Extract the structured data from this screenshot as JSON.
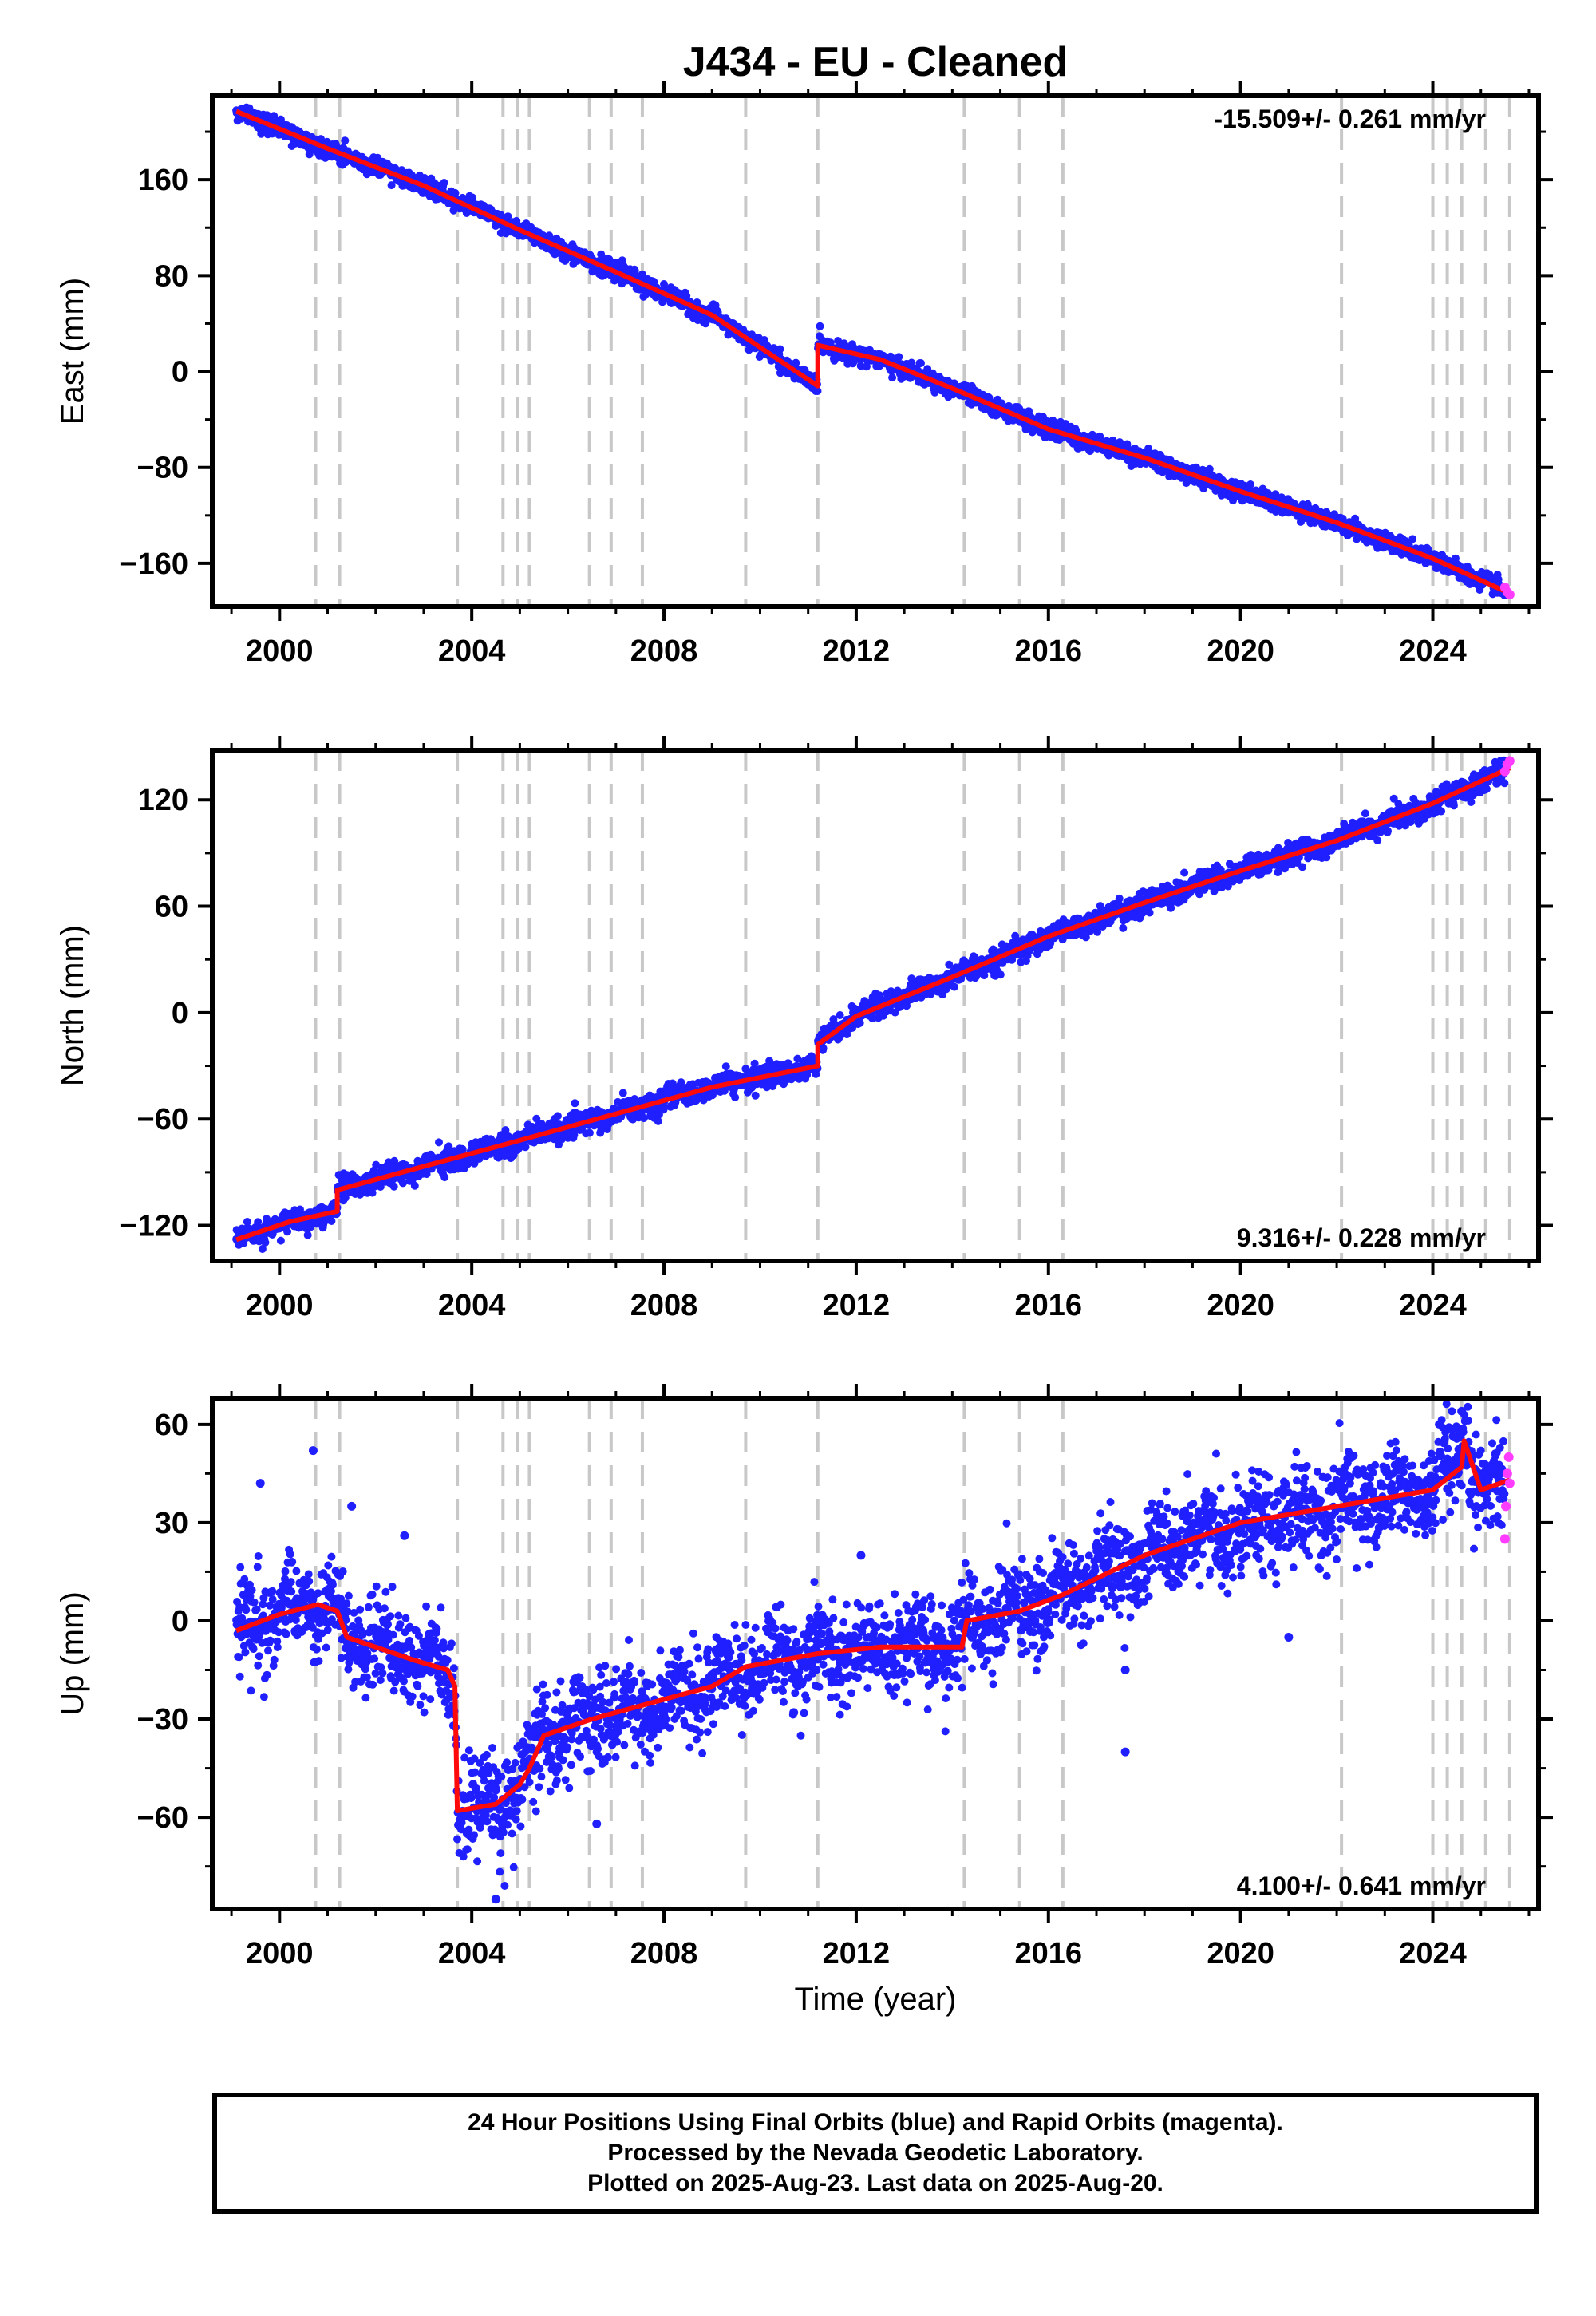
{
  "title": "J434  - EU - Cleaned",
  "colors": {
    "final": "#1f1fff",
    "rapid": "#ff3cff",
    "model": "#ff0a0a",
    "break": "#c8c8c8"
  },
  "chart_data": [
    {
      "type": "scatter",
      "name": "east",
      "ylabel": "East (mm)",
      "xlabel": "",
      "xlim": [
        1998.6,
        2026.2
      ],
      "ylim": [
        -196,
        230
      ],
      "yticks": [
        160,
        80,
        0,
        -80,
        -160
      ],
      "ytick_labels": [
        "160",
        "80",
        "0",
        "−80",
        "−160"
      ],
      "xticks": [
        2000,
        2004,
        2008,
        2012,
        2016,
        2020,
        2024
      ],
      "xtick_labels": [
        "2000",
        "2004",
        "2008",
        "2012",
        "2016",
        "2020",
        "2024"
      ],
      "rate_label": "-15.509+/- 0.261 mm/yr",
      "rate_position": "top-right",
      "model_line": {
        "x": [
          1999.1,
          2001.0,
          2003.0,
          2005.0,
          2007.0,
          2009.0,
          2011.2,
          2011.2,
          2012.5,
          2014.0,
          2016.0,
          2018.0,
          2020.0,
          2022.0,
          2024.0,
          2025.6
        ],
        "y": [
          217,
          186,
          155,
          118,
          83,
          47,
          -12,
          22,
          10,
          -14,
          -48,
          -72,
          -100,
          -126,
          -156,
          -185
        ]
      },
      "point_noise": 3.5,
      "outliers": [],
      "rapid_points": {
        "x": [
          2025.5,
          2025.55,
          2025.6
        ],
        "y": [
          -180,
          -184,
          -186
        ]
      },
      "grid": false
    },
    {
      "type": "scatter",
      "name": "north",
      "ylabel": "North (mm)",
      "xlabel": "",
      "xlim": [
        1998.6,
        2026.2
      ],
      "ylim": [
        -140,
        148
      ],
      "yticks": [
        120,
        60,
        0,
        -60,
        -120
      ],
      "ytick_labels": [
        "120",
        "60",
        "0",
        "−60",
        "−120"
      ],
      "xticks": [
        2000,
        2004,
        2008,
        2012,
        2016,
        2020,
        2024
      ],
      "xtick_labels": [
        "2000",
        "2004",
        "2008",
        "2012",
        "2016",
        "2020",
        "2024"
      ],
      "rate_label": "9.316+/- 0.228 mm/yr",
      "rate_position": "bottom-right",
      "model_line": {
        "x": [
          1999.1,
          2000.2,
          2001.2,
          2001.2,
          2003.5,
          2005.0,
          2007.0,
          2009.0,
          2011.2,
          2011.2,
          2012.0,
          2014.0,
          2016.0,
          2018.0,
          2020.0,
          2022.0,
          2024.0,
          2025.6
        ],
        "y": [
          -128,
          -118,
          -112,
          -100,
          -83,
          -72,
          -57,
          -42,
          -30,
          -18,
          -2,
          20,
          43,
          62,
          80,
          97,
          118,
          138
        ]
      },
      "point_noise": 3.0,
      "outliers": [],
      "rapid_points": {
        "x": [
          2025.5,
          2025.55,
          2025.6
        ],
        "y": [
          136,
          140,
          142
        ]
      },
      "grid": false
    },
    {
      "type": "scatter",
      "name": "up",
      "ylabel": "Up (mm)",
      "xlabel": "Time (year)",
      "xlim": [
        1998.6,
        2026.2
      ],
      "ylim": [
        -88,
        68
      ],
      "yticks": [
        60,
        30,
        0,
        -30,
        -60
      ],
      "ytick_labels": [
        "60",
        "30",
        "0",
        "−30",
        "−60"
      ],
      "xticks": [
        2000,
        2004,
        2008,
        2012,
        2016,
        2020,
        2024
      ],
      "xtick_labels": [
        "2000",
        "2004",
        "2008",
        "2012",
        "2016",
        "2020",
        "2024"
      ],
      "rate_label": "4.100+/- 0.641 mm/yr",
      "rate_position": "bottom-right",
      "model_line": {
        "x": [
          1999.1,
          2000.0,
          2000.8,
          2001.2,
          2001.4,
          2002.0,
          2002.8,
          2003.5,
          2003.65,
          2003.7,
          2004.5,
          2005.0,
          2005.2,
          2005.5,
          2006.5,
          2007.5,
          2009.0,
          2009.7,
          2011.2,
          2012.5,
          2014.2,
          2014.3,
          2015.4,
          2016.3,
          2018.0,
          2020.0,
          2022.0,
          2024.0,
          2024.6,
          2024.65,
          2025.0,
          2025.6
        ],
        "y": [
          -3,
          2,
          5,
          3,
          -5,
          -8,
          -12,
          -15,
          -20,
          -58,
          -56,
          -50,
          -45,
          -35,
          -30,
          -26,
          -20,
          -14,
          -10,
          -8,
          -8,
          0,
          3,
          8,
          20,
          30,
          35,
          40,
          47,
          55,
          40,
          43
        ]
      },
      "point_noise": 7,
      "outliers": [
        {
          "x": 1999.6,
          "y": 42
        },
        {
          "x": 2000.7,
          "y": 52
        },
        {
          "x": 2001.5,
          "y": 35
        },
        {
          "x": 2002.6,
          "y": 26
        },
        {
          "x": 2004.5,
          "y": -85
        },
        {
          "x": 2006.6,
          "y": -62
        },
        {
          "x": 2010.7,
          "y": -28
        },
        {
          "x": 2012.1,
          "y": 20
        },
        {
          "x": 2017.6,
          "y": -40
        },
        {
          "x": 2017.6,
          "y": -15
        },
        {
          "x": 2021.0,
          "y": -5
        },
        {
          "x": 2024.6,
          "y": 64
        }
      ],
      "rapid_points": {
        "x": [
          2025.5,
          2025.52,
          2025.55,
          2025.58,
          2025.6
        ],
        "y": [
          25,
          35,
          45,
          50,
          42
        ]
      },
      "grid": false
    }
  ],
  "break_lines": [
    2000.75,
    2001.25,
    2003.7,
    2004.65,
    2004.95,
    2005.2,
    2006.45,
    2006.9,
    2007.55,
    2009.7,
    2011.2,
    2014.25,
    2015.4,
    2016.3,
    2022.1,
    2024.0,
    2024.3,
    2024.6,
    2025.1,
    2025.6
  ],
  "footer": {
    "line1": "24 Hour Positions Using Final Orbits (blue) and Rapid Orbits (magenta).",
    "line2": "Processed by the Nevada Geodetic Laboratory.",
    "line3": "Plotted on 2025-Aug-23. Last data on 2025-Aug-20."
  }
}
